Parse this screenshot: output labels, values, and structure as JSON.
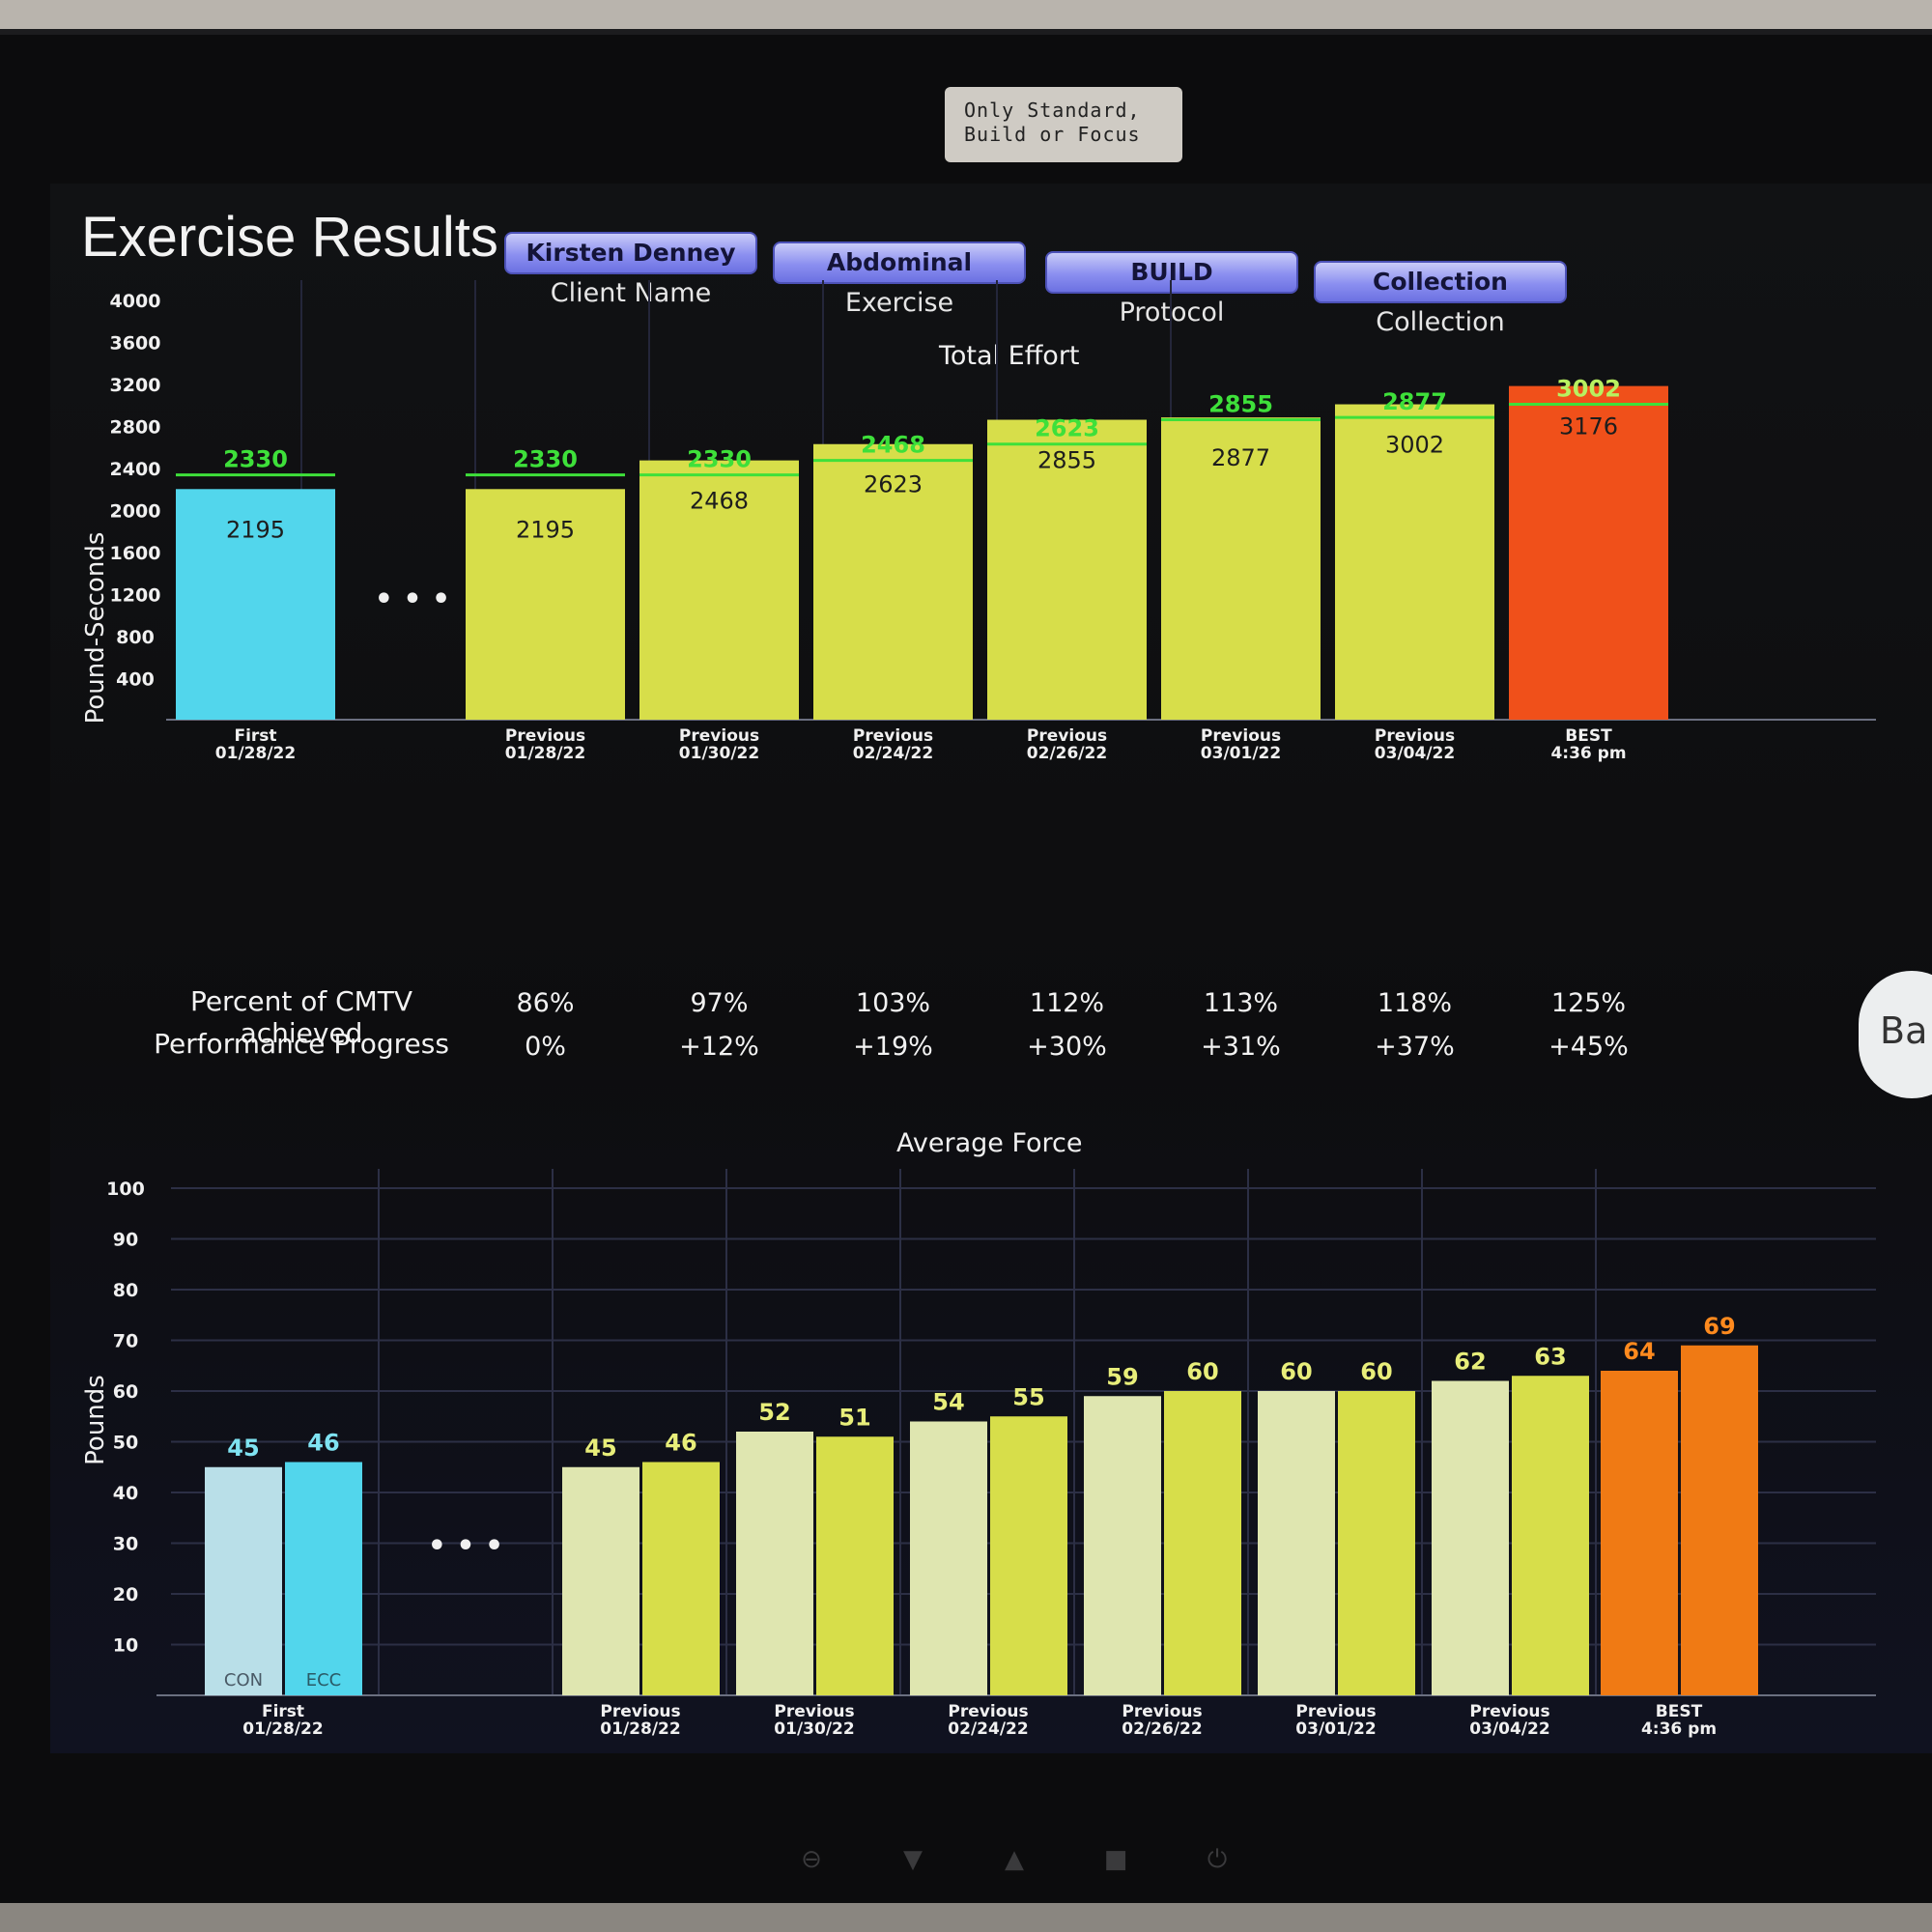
{
  "device": {
    "sticker_lines": [
      "Only Standard,",
      "Build or Focus"
    ],
    "hw_buttons": [
      "⊖",
      "▼",
      "▲",
      "■",
      "⏻"
    ]
  },
  "header": {
    "title": "Exercise Results",
    "pills": [
      {
        "value": "Kirsten Denney",
        "label": "Client Name"
      },
      {
        "value": "Abdominal",
        "label": "Exercise"
      },
      {
        "value": "BUILD",
        "label": "Protocol"
      },
      {
        "value": "Collection",
        "label": "Collection"
      }
    ],
    "back_button": "Ba"
  },
  "colors": {
    "first": "#52d6ec",
    "previous": "#d7de4a",
    "best": "#f0501a",
    "target_line": "#3ee03a",
    "con_first": "#b9dfe8",
    "con_previous": "#dfe6b0",
    "best_force": "#f07a14",
    "force_label_first": "#7fe3f2",
    "force_label_prev": "#e8ee7a",
    "force_label_best": "#ff8a1e"
  },
  "total_effort": {
    "title": "Total Effort",
    "y_label": "Pound-Seconds",
    "y_ticks": [
      400,
      800,
      1200,
      1600,
      2000,
      2400,
      2800,
      3200,
      3600,
      4000
    ],
    "ellipsis": "• • •",
    "groups": [
      {
        "label_top": "First",
        "label_bottom": "01/28/22",
        "value": 2195,
        "target": 2330,
        "kind": "first"
      },
      {
        "label_top": "Previous",
        "label_bottom": "01/28/22",
        "value": 2195,
        "target": 2330,
        "kind": "previous"
      },
      {
        "label_top": "Previous",
        "label_bottom": "01/30/22",
        "value": 2468,
        "target": 2330,
        "kind": "previous"
      },
      {
        "label_top": "Previous",
        "label_bottom": "02/24/22",
        "value": 2623,
        "target": 2468,
        "kind": "previous"
      },
      {
        "label_top": "Previous",
        "label_bottom": "02/26/22",
        "value": 2855,
        "target": 2623,
        "kind": "previous"
      },
      {
        "label_top": "Previous",
        "label_bottom": "03/01/22",
        "value": 2877,
        "target": 2855,
        "kind": "previous"
      },
      {
        "label_top": "Previous",
        "label_bottom": "03/04/22",
        "value": 3002,
        "target": 2877,
        "kind": "previous"
      },
      {
        "label_top": "BEST",
        "label_bottom": "4:36 pm",
        "value": 3176,
        "target": 3002,
        "kind": "best"
      }
    ]
  },
  "metrics": {
    "percent_label": "Percent of CMTV achieved",
    "progress_label": "Performance Progress",
    "percent": [
      "86%",
      "97%",
      "103%",
      "112%",
      "113%",
      "118%",
      "125%"
    ],
    "progress": [
      "0%",
      "+12%",
      "+19%",
      "+30%",
      "+31%",
      "+37%",
      "+45%"
    ]
  },
  "average_force": {
    "title": "Average Force",
    "y_label": "Pounds",
    "y_ticks": [
      10,
      20,
      30,
      40,
      50,
      60,
      70,
      80,
      90,
      100
    ],
    "ellipsis": "• • •",
    "con_label": "CON",
    "ecc_label": "ECC",
    "groups": [
      {
        "label_top": "First",
        "label_bottom": "01/28/22",
        "con": 45,
        "ecc": 46,
        "kind": "first"
      },
      {
        "label_top": "Previous",
        "label_bottom": "01/28/22",
        "con": 45,
        "ecc": 46,
        "kind": "previous"
      },
      {
        "label_top": "Previous",
        "label_bottom": "01/30/22",
        "con": 52,
        "ecc": 51,
        "kind": "previous"
      },
      {
        "label_top": "Previous",
        "label_bottom": "02/24/22",
        "con": 54,
        "ecc": 55,
        "kind": "previous"
      },
      {
        "label_top": "Previous",
        "label_bottom": "02/26/22",
        "con": 59,
        "ecc": 60,
        "kind": "previous"
      },
      {
        "label_top": "Previous",
        "label_bottom": "03/01/22",
        "con": 60,
        "ecc": 60,
        "kind": "previous"
      },
      {
        "label_top": "Previous",
        "label_bottom": "03/04/22",
        "con": 62,
        "ecc": 63,
        "kind": "previous"
      },
      {
        "label_top": "BEST",
        "label_bottom": "4:36 pm",
        "con": 64,
        "ecc": 69,
        "kind": "best"
      }
    ]
  },
  "chart_data": [
    {
      "type": "bar",
      "title": "Total Effort",
      "ylabel": "Pound-Seconds",
      "ylim": [
        0,
        4000
      ],
      "categories": [
        "First 01/28/22",
        "Previous 01/28/22",
        "Previous 01/30/22",
        "Previous 02/24/22",
        "Previous 02/26/22",
        "Previous 03/01/22",
        "Previous 03/04/22",
        "BEST 4:36 pm"
      ],
      "values": [
        2195,
        2195,
        2468,
        2623,
        2855,
        2877,
        3002,
        3176
      ],
      "targets": [
        2330,
        2330,
        2330,
        2468,
        2623,
        2855,
        2877,
        3002
      ],
      "grid": true
    },
    {
      "type": "bar",
      "title": "Average Force",
      "ylabel": "Pounds",
      "ylim": [
        0,
        100
      ],
      "categories": [
        "First 01/28/22",
        "Previous 01/28/22",
        "Previous 01/30/22",
        "Previous 02/24/22",
        "Previous 02/26/22",
        "Previous 03/01/22",
        "Previous 03/04/22",
        "BEST 4:36 pm"
      ],
      "series": [
        {
          "name": "CON",
          "values": [
            45,
            45,
            52,
            54,
            59,
            60,
            62,
            64
          ]
        },
        {
          "name": "ECC",
          "values": [
            46,
            46,
            51,
            55,
            60,
            60,
            63,
            69
          ]
        }
      ],
      "grid": true
    }
  ]
}
